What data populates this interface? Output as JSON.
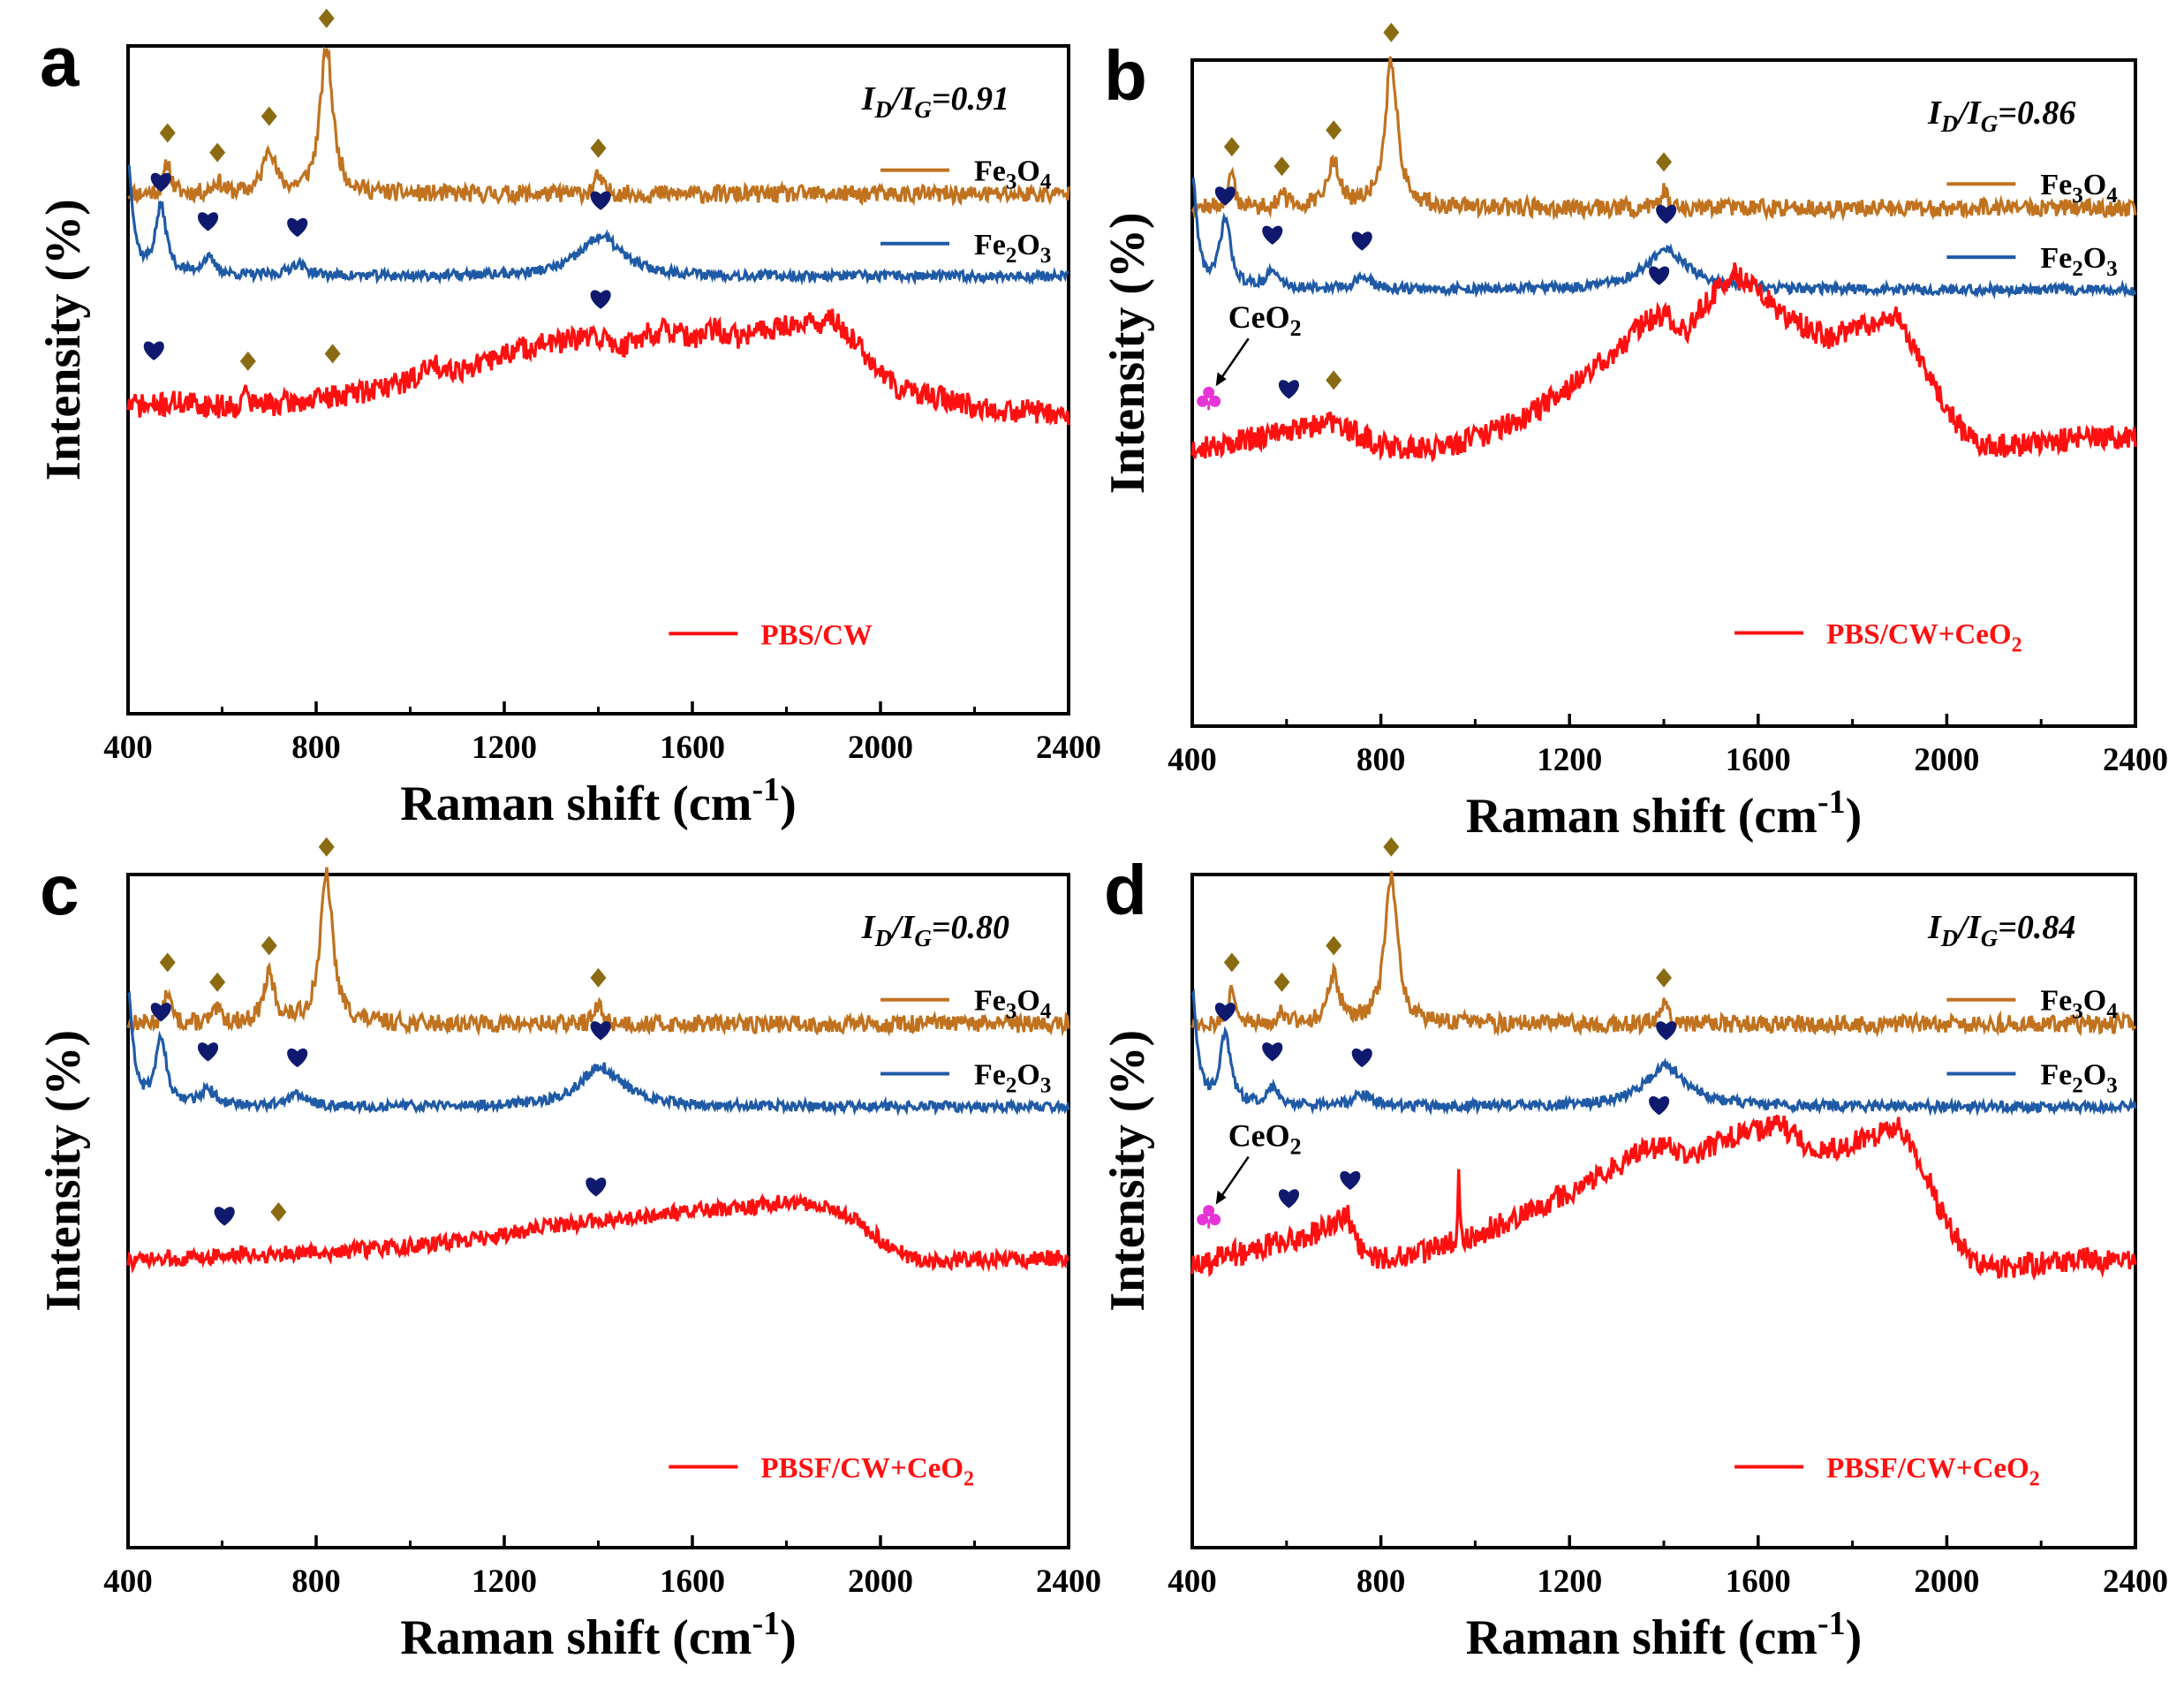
{
  "figure": {
    "layout": "2x2 grid of Raman spectra panels",
    "shared": {
      "xlabel_main": "Raman shift (cm",
      "xlabel_sup": "-1",
      "xlabel_close": ")",
      "ylabel": "Intensity (%)",
      "xlim": [
        400,
        2400
      ],
      "xticks": [
        400,
        800,
        1200,
        1600,
        2000,
        2400
      ],
      "ratio_prefix_I": "I",
      "ratio_sub_D": "D",
      "ratio_slash": "/",
      "ratio_sub_G": "G",
      "ratio_eq": "=",
      "ref_series": {
        "fe3o4": {
          "base": "Fe",
          "sub1": "3",
          "mid": "O",
          "sub2": "4",
          "color": "#c0721f"
        },
        "fe2o3": {
          "base": "Fe",
          "sub1": "2",
          "mid": "O",
          "sub2": "3",
          "color": "#1f5aa6"
        }
      },
      "marker_colors": {
        "diamond": "#8b6b12",
        "heart": "#0f1a6e",
        "club": "#e535d6"
      },
      "sample_color": "#ff1010"
    }
  },
  "chart_data": [
    {
      "type": "line",
      "panel_label": "a",
      "title": "",
      "xlabel": "Raman shift (cm-1)",
      "ylabel": "Intensity (%)",
      "xlim": [
        400,
        2400
      ],
      "ratio_value": "0.91",
      "grid": false,
      "legend": [
        "Fe3O4",
        "Fe2O3",
        "PBS/CW"
      ],
      "sample_label_parts": [
        {
          "t": "PBS/CW"
        }
      ],
      "sample": {
        "name": "PBS/CW",
        "points": [
          [
            400,
            0.04
          ],
          [
            450,
            0.03
          ],
          [
            500,
            0.05
          ],
          [
            600,
            0.03
          ],
          [
            650,
            0.04
          ],
          [
            700,
            0.04
          ],
          [
            800,
            0.06
          ],
          [
            900,
            0.1
          ],
          [
            1000,
            0.15
          ],
          [
            1050,
            0.22
          ],
          [
            1100,
            0.2
          ],
          [
            1150,
            0.22
          ],
          [
            1200,
            0.27
          ],
          [
            1250,
            0.3
          ],
          [
            1300,
            0.32
          ],
          [
            1350,
            0.33
          ],
          [
            1400,
            0.35
          ],
          [
            1450,
            0.3
          ],
          [
            1500,
            0.36
          ],
          [
            1550,
            0.38
          ],
          [
            1600,
            0.33
          ],
          [
            1650,
            0.38
          ],
          [
            1700,
            0.34
          ],
          [
            1750,
            0.38
          ],
          [
            1800,
            0.4
          ],
          [
            1850,
            0.41
          ],
          [
            1900,
            0.42
          ],
          [
            1950,
            0.32
          ],
          [
            2000,
            0.17
          ],
          [
            2050,
            0.1
          ],
          [
            2100,
            0.08
          ],
          [
            2200,
            0.03
          ],
          [
            2300,
            0.01
          ],
          [
            2400,
            0.0
          ]
        ],
        "spike": {
          "x": 650,
          "h": 0.12
        }
      },
      "sample_markers": [
        {
          "x": 455,
          "kind": "heart",
          "dy": 0.16
        },
        {
          "x": 655,
          "kind": "diamond",
          "dy": 0.1
        },
        {
          "x": 835,
          "kind": "diamond",
          "dy": 0.1
        },
        {
          "x": 1405,
          "kind": "heart",
          "dy": 0.08
        }
      ],
      "ceo2": null
    },
    {
      "type": "line",
      "panel_label": "b",
      "title": "",
      "xlabel": "Raman shift (cm-1)",
      "ylabel": "Intensity (%)",
      "xlim": [
        400,
        2400
      ],
      "ratio_value": "0.86",
      "grid": false,
      "legend": [
        "Fe3O4",
        "Fe2O3",
        "PBS/CW+CeO2"
      ],
      "sample_label_parts": [
        {
          "t": "PBS/CW+CeO"
        },
        {
          "t": "2",
          "sub": true
        }
      ],
      "sample": {
        "name": "PBS/CW+CeO2",
        "points": [
          [
            400,
            0.0
          ],
          [
            450,
            0.02
          ],
          [
            500,
            0.04
          ],
          [
            550,
            0.06
          ],
          [
            600,
            0.08
          ],
          [
            650,
            0.11
          ],
          [
            700,
            0.12
          ],
          [
            750,
            0.07
          ],
          [
            800,
            0.02
          ],
          [
            900,
            0.0
          ],
          [
            1000,
            0.05
          ],
          [
            1100,
            0.14
          ],
          [
            1200,
            0.28
          ],
          [
            1300,
            0.45
          ],
          [
            1350,
            0.57
          ],
          [
            1400,
            0.62
          ],
          [
            1450,
            0.55
          ],
          [
            1500,
            0.7
          ],
          [
            1550,
            0.8
          ],
          [
            1600,
            0.72
          ],
          [
            1650,
            0.62
          ],
          [
            1700,
            0.56
          ],
          [
            1750,
            0.51
          ],
          [
            1800,
            0.55
          ],
          [
            1850,
            0.58
          ],
          [
            1900,
            0.6
          ],
          [
            1950,
            0.4
          ],
          [
            2000,
            0.18
          ],
          [
            2050,
            0.05
          ],
          [
            2100,
            0.01
          ],
          [
            2200,
            0.03
          ],
          [
            2300,
            0.06
          ],
          [
            2400,
            0.05
          ]
        ],
        "spike": null
      },
      "sample_markers": [
        {
          "x": 605,
          "kind": "heart",
          "dy": 0.1
        },
        {
          "x": 700,
          "kind": "diamond",
          "dy": 0.1
        },
        {
          "x": 1390,
          "kind": "heart",
          "dy": 0.09
        }
      ],
      "ceo2": {
        "label_main": "CeO",
        "label_sub": "2",
        "x": 435
      }
    },
    {
      "type": "line",
      "panel_label": "c",
      "title": "",
      "xlabel": "Raman shift (cm-1)",
      "ylabel": "Intensity (%)",
      "xlim": [
        400,
        2400
      ],
      "ratio_value": "0.80",
      "grid": false,
      "legend": [
        "Fe3O4",
        "Fe2O3",
        "PBSF/CW+CeO2"
      ],
      "sample_label_parts": [
        {
          "t": "PBSF/CW+CeO"
        },
        {
          "t": "2",
          "sub": true
        }
      ],
      "sample": {
        "name": "PBSF/CW+CeO2",
        "points": [
          [
            400,
            0.0
          ],
          [
            500,
            0.02
          ],
          [
            600,
            0.04
          ],
          [
            700,
            0.05
          ],
          [
            800,
            0.06
          ],
          [
            900,
            0.08
          ],
          [
            1000,
            0.1
          ],
          [
            1100,
            0.14
          ],
          [
            1200,
            0.18
          ],
          [
            1300,
            0.24
          ],
          [
            1400,
            0.28
          ],
          [
            1500,
            0.3
          ],
          [
            1600,
            0.34
          ],
          [
            1700,
            0.36
          ],
          [
            1800,
            0.4
          ],
          [
            1900,
            0.36
          ],
          [
            1950,
            0.27
          ],
          [
            2000,
            0.15
          ],
          [
            2050,
            0.05
          ],
          [
            2100,
            0.0
          ],
          [
            2200,
            0.02
          ],
          [
            2300,
            0.01
          ],
          [
            2400,
            0.03
          ]
        ],
        "spike": null
      },
      "sample_markers": [
        {
          "x": 605,
          "kind": "heart",
          "dy": 0.13
        },
        {
          "x": 720,
          "kind": "diamond",
          "dy": 0.14
        },
        {
          "x": 1395,
          "kind": "heart",
          "dy": 0.09
        }
      ],
      "ceo2": null
    },
    {
      "type": "line",
      "panel_label": "d",
      "title": "",
      "xlabel": "Raman shift (cm-1)",
      "ylabel": "Intensity (%)",
      "xlim": [
        400,
        2400
      ],
      "ratio_value": "0.84",
      "grid": false,
      "legend": [
        "Fe3O4",
        "Fe2O3",
        "PBSF/CW+CeO2"
      ],
      "sample_label_parts": [
        {
          "t": "PBSF/CW+CeO"
        },
        {
          "t": "2",
          "sub": true
        }
      ],
      "sample": {
        "name": "PBSF/CW+CeO2",
        "points": [
          [
            400,
            0.0
          ],
          [
            450,
            0.04
          ],
          [
            500,
            0.07
          ],
          [
            550,
            0.1
          ],
          [
            600,
            0.12
          ],
          [
            650,
            0.15
          ],
          [
            700,
            0.2
          ],
          [
            730,
            0.23
          ],
          [
            760,
            0.08
          ],
          [
            800,
            0.04
          ],
          [
            850,
            0.06
          ],
          [
            900,
            0.08
          ],
          [
            1000,
            0.14
          ],
          [
            1050,
            0.2
          ],
          [
            1100,
            0.24
          ],
          [
            1200,
            0.34
          ],
          [
            1300,
            0.46
          ],
          [
            1350,
            0.52
          ],
          [
            1400,
            0.56
          ],
          [
            1450,
            0.5
          ],
          [
            1500,
            0.55
          ],
          [
            1550,
            0.6
          ],
          [
            1600,
            0.62
          ],
          [
            1650,
            0.64
          ],
          [
            1700,
            0.56
          ],
          [
            1750,
            0.52
          ],
          [
            1800,
            0.56
          ],
          [
            1850,
            0.6
          ],
          [
            1900,
            0.63
          ],
          [
            1950,
            0.45
          ],
          [
            2000,
            0.2
          ],
          [
            2050,
            0.05
          ],
          [
            2100,
            0.0
          ],
          [
            2200,
            0.02
          ],
          [
            2300,
            0.04
          ],
          [
            2400,
            0.02
          ]
        ],
        "spike": {
          "x": 965,
          "h": 0.32
        }
      },
      "sample_markers": [
        {
          "x": 605,
          "kind": "heart",
          "dy": 0.1
        },
        {
          "x": 735,
          "kind": "heart",
          "dy": 0.1
        },
        {
          "x": 1390,
          "kind": "heart",
          "dy": 0.09
        }
      ],
      "ceo2": {
        "label_main": "CeO",
        "label_sub": "2",
        "x": 435
      }
    }
  ]
}
